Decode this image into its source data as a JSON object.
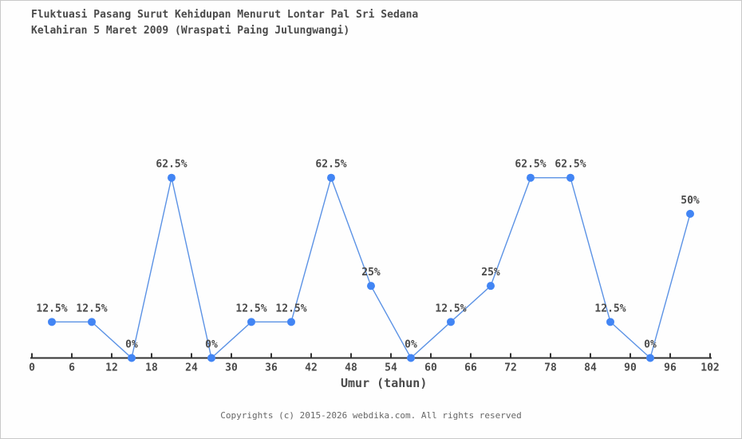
{
  "title": {
    "line1": "Fluktuasi Pasang Surut Kehidupan Menurut Lontar Pal Sri Sedana",
    "line2": "Kelahiran 5 Maret 2009 (Wraspati Paing Julungwangi)"
  },
  "chart_data": {
    "type": "line",
    "x": [
      3,
      9,
      15,
      21,
      27,
      33,
      39,
      45,
      51,
      57,
      63,
      69,
      75,
      81,
      87,
      93,
      99
    ],
    "values": [
      12.5,
      12.5,
      0,
      62.5,
      0,
      12.5,
      12.5,
      62.5,
      25,
      0,
      12.5,
      25,
      62.5,
      62.5,
      12.5,
      0,
      50
    ],
    "point_labels": [
      "12.5%",
      "12.5%",
      "0%",
      "62.5%",
      "0%",
      "12.5%",
      "12.5%",
      "62.5%",
      "25%",
      "0%",
      "12.5%",
      "25%",
      "62.5%",
      "62.5%",
      "12.5%",
      "0%",
      "50%"
    ],
    "xlabel": "Umur (tahun)",
    "x_ticks": [
      0,
      6,
      12,
      18,
      24,
      30,
      36,
      42,
      48,
      54,
      60,
      66,
      72,
      78,
      84,
      90,
      96,
      102
    ],
    "xlim": [
      0,
      102
    ],
    "grid": "off",
    "legend": "none"
  },
  "colors": {
    "marker": "#4285f4",
    "line": "#5b92e5",
    "axis": "#333333",
    "text": "#4a4a4a",
    "footer_text": "#666666"
  },
  "footer": {
    "copyright": "Copyrights (c) 2015-2026 webdika.com. All rights reserved"
  }
}
